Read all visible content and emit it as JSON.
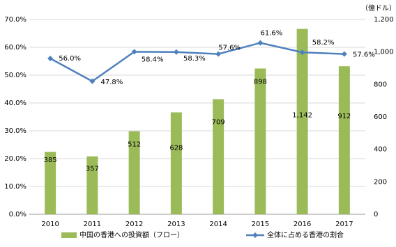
{
  "chart_data": {
    "type": "bar-line",
    "unit_label": "（億ドル）",
    "categories": [
      "2010",
      "2011",
      "2012",
      "2013",
      "2014",
      "2015",
      "2016",
      "2017"
    ],
    "series": [
      {
        "name": "中国の香港への投資額（フロー）",
        "color": "#9bbb59",
        "axis": "y2",
        "values": [
          385,
          357,
          512,
          628,
          709,
          898,
          1142,
          912
        ],
        "value_labels": [
          "385",
          "357",
          "512",
          "628",
          "709",
          "898",
          "1,142",
          "912"
        ]
      },
      {
        "name": "全体に占める香港の割合",
        "color": "#4f81bd",
        "axis": "y",
        "values": [
          56.0,
          47.8,
          58.4,
          58.3,
          57.6,
          61.6,
          58.2,
          57.6
        ],
        "value_labels": [
          "56.0%",
          "47.8%",
          "58.4%",
          "58.3%",
          "57.6%",
          "61.6%",
          "58.2%",
          "57.6%"
        ]
      }
    ],
    "ylim": [
      0,
      70
    ],
    "yticks": [
      {
        "value": 0,
        "label": "0.0%"
      },
      {
        "value": 10,
        "label": "10.0%"
      },
      {
        "value": 20,
        "label": "20.0%"
      },
      {
        "value": 30,
        "label": "30.0%"
      },
      {
        "value": 40,
        "label": "40.0%"
      },
      {
        "value": 50,
        "label": "50.0%"
      },
      {
        "value": 60,
        "label": "60.0%"
      },
      {
        "value": 70,
        "label": "70.0%"
      }
    ],
    "y2lim": [
      0,
      1200
    ],
    "y2ticks": [
      0,
      200,
      400,
      600,
      800,
      {
        "value": 1000,
        "label": "1,000"
      },
      {
        "value": 1200,
        "label": "1,200"
      }
    ],
    "grid": true
  }
}
